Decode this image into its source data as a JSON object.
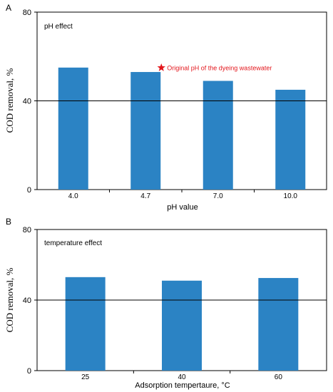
{
  "colors": {
    "bar": "#2b83c4",
    "annotation": "#e3161c",
    "axis": "#000000",
    "reference_line": "#000000"
  },
  "chart_data": [
    {
      "panel_label": "A",
      "type": "bar",
      "title": "pH effect",
      "xlabel": "pH value",
      "ylabel": "COD removal, %",
      "categories": [
        "4.0",
        "4.7",
        "7.0",
        "10.0"
      ],
      "values": [
        55,
        53,
        49,
        45
      ],
      "ylim": [
        0,
        80
      ],
      "yticks": [
        "0",
        "40",
        "80"
      ],
      "reference_line_y": 40,
      "grid": false,
      "annotation": {
        "text": "Original pH of the dyeing wastewater",
        "category": "4.7",
        "marker": "star-icon"
      }
    },
    {
      "panel_label": "B",
      "type": "bar",
      "title": "temperature effect",
      "xlabel": "Adsorption tempertaure, °C",
      "ylabel": "COD removal, %",
      "categories": [
        "25",
        "40",
        "60"
      ],
      "values": [
        53,
        51,
        52.5
      ],
      "ylim": [
        0,
        80
      ],
      "yticks": [
        "0",
        "40",
        "80"
      ],
      "reference_line_y": 40,
      "grid": false
    }
  ]
}
